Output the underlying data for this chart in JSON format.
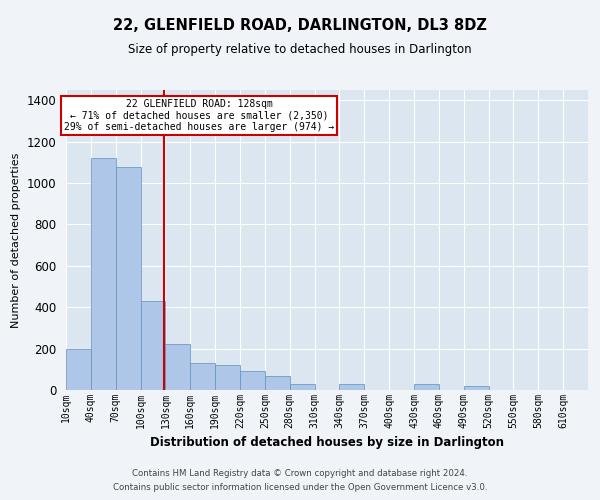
{
  "title": "22, GLENFIELD ROAD, DARLINGTON, DL3 8DZ",
  "subtitle": "Size of property relative to detached houses in Darlington",
  "xlabel": "Distribution of detached houses by size in Darlington",
  "ylabel": "Number of detached properties",
  "bar_color": "#aec6e8",
  "bar_edge_color": "#5f8fbf",
  "background_color": "#dce6f0",
  "grid_color": "#ffffff",
  "fig_background_color": "#f0f4f8",
  "annotation_box_color": "#cc0000",
  "annotation_line_color": "#cc0000",
  "property_line_x": 128,
  "annotation_text_line1": "22 GLENFIELD ROAD: 128sqm",
  "annotation_text_line2": "← 71% of detached houses are smaller (2,350)",
  "annotation_text_line3": "29% of semi-detached houses are larger (974) →",
  "x_tick_labels": [
    "10sqm",
    "40sqm",
    "70sqm",
    "100sqm",
    "130sqm",
    "160sqm",
    "190sqm",
    "220sqm",
    "250sqm",
    "280sqm",
    "310sqm",
    "340sqm",
    "370sqm",
    "400sqm",
    "430sqm",
    "460sqm",
    "490sqm",
    "520sqm",
    "550sqm",
    "580sqm",
    "610sqm"
  ],
  "bin_left_edges": [
    10,
    40,
    70,
    100,
    130,
    160,
    190,
    220,
    250,
    280,
    310,
    340,
    370,
    400,
    430,
    460,
    490,
    520,
    550,
    580
  ],
  "bar_heights": [
    200,
    1120,
    1080,
    430,
    220,
    130,
    120,
    90,
    70,
    30,
    0,
    30,
    0,
    0,
    30,
    0,
    20,
    0,
    0,
    0
  ],
  "bin_width": 30,
  "ylim": [
    0,
    1450
  ],
  "yticks": [
    0,
    200,
    400,
    600,
    800,
    1000,
    1200,
    1400
  ],
  "xmin": 10,
  "xmax": 640,
  "footnote_line1": "Contains HM Land Registry data © Crown copyright and database right 2024.",
  "footnote_line2": "Contains public sector information licensed under the Open Government Licence v3.0."
}
